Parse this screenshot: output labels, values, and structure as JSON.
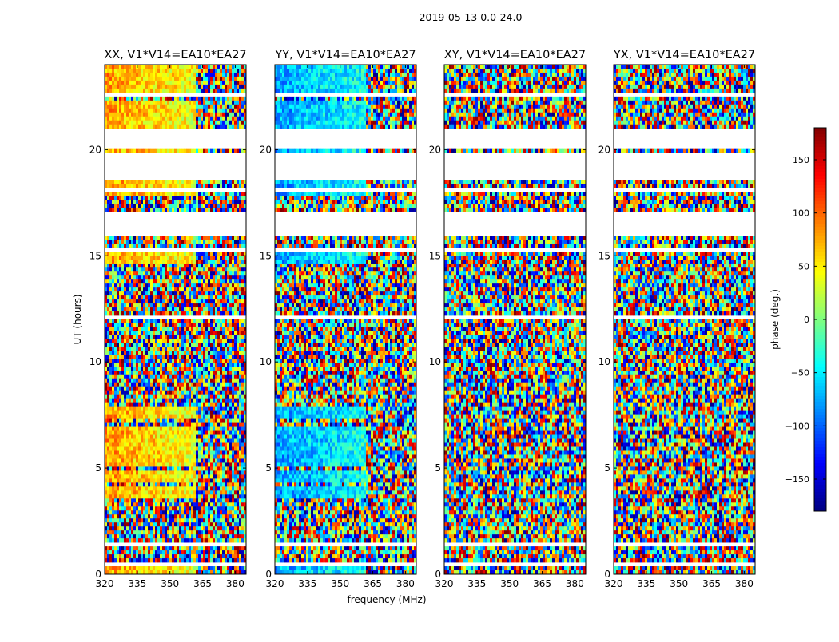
{
  "figure": {
    "suptitle": "2019-05-13 0.0-24.0",
    "xlabel": "frequency (MHz)",
    "ylabel": "UT (hours)"
  },
  "chart_data": {
    "type": "heatmap",
    "xlim": [
      320,
      385
    ],
    "ylim": [
      0,
      24
    ],
    "x_ticks": [
      320,
      335,
      350,
      365,
      380
    ],
    "y_ticks": [
      0,
      5,
      10,
      15,
      20
    ],
    "panels": [
      {
        "title": "XX, V1*V14=EA10*EA27",
        "coherent_phase_deg": 60
      },
      {
        "title": "YY, V1*V14=EA10*EA27",
        "coherent_phase_deg": -60
      },
      {
        "title": "XY, V1*V14=EA10*EA27",
        "coherent_phase_deg": null
      },
      {
        "title": "YX, V1*V14=EA10*EA27",
        "coherent_phase_deg": null
      }
    ],
    "colorbar": {
      "label": "phase (deg.)",
      "range": [
        -180,
        180
      ],
      "ticks": [
        150,
        100,
        50,
        0,
        -50,
        -100,
        -150
      ],
      "tick_labels": [
        "150",
        "100",
        "50",
        "0",
        "−50",
        "−100",
        "−150"
      ],
      "colormap": "jet"
    },
    "flagged_gaps_hours": [
      [
        0.35,
        0.55
      ],
      [
        1.4,
        1.55
      ],
      [
        3.5,
        3.65
      ],
      [
        12.0,
        12.1
      ],
      [
        14.55,
        14.7
      ],
      [
        15.2,
        15.3
      ],
      [
        15.95,
        17.0
      ],
      [
        17.25,
        17.3
      ],
      [
        17.55,
        17.65
      ],
      [
        18.05,
        18.15
      ],
      [
        18.6,
        19.85
      ],
      [
        20.15,
        20.95
      ],
      [
        21.5,
        21.65
      ],
      [
        22.3,
        22.4
      ],
      [
        22.5,
        22.6
      ]
    ],
    "coherent_segments_hours": [
      [
        0.0,
        0.35
      ],
      [
        3.65,
        4.2
      ],
      [
        4.4,
        4.9
      ],
      [
        5.0,
        5.6
      ],
      [
        5.7,
        6.3
      ],
      [
        6.4,
        7.0
      ],
      [
        7.3,
        7.9
      ],
      [
        14.7,
        15.2
      ],
      [
        17.8,
        18.05
      ],
      [
        18.15,
        18.6
      ],
      [
        19.85,
        20.15
      ],
      [
        20.95,
        21.5
      ],
      [
        21.65,
        22.3
      ],
      [
        22.6,
        24.0
      ]
    ]
  }
}
